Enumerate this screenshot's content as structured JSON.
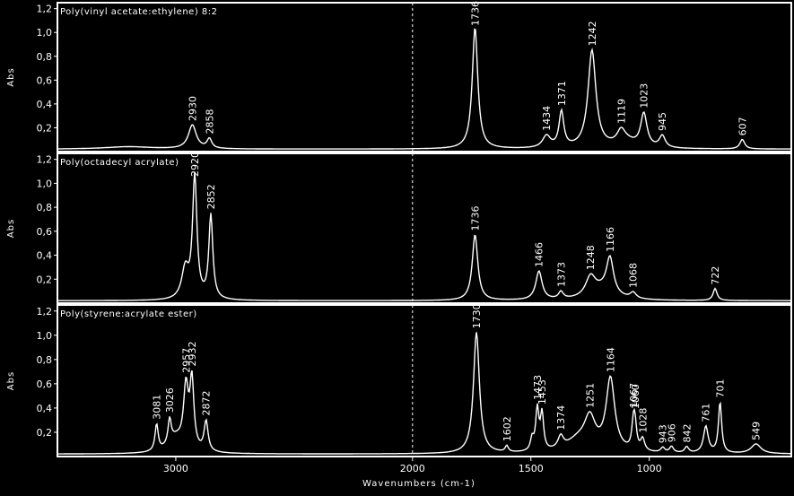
{
  "chart_data": {
    "type": "line",
    "x_axis": {
      "label": "Wavenumbers (cm-1)",
      "range": [
        3500,
        400
      ],
      "reversed": true,
      "ticks": [
        3000,
        2000,
        1500,
        1000
      ],
      "tick_labels": [
        "3000",
        "2000",
        "1500",
        "1000"
      ],
      "dashed_marker": 2000
    },
    "y_axis": {
      "label": "Abs",
      "range": [
        0,
        1.25
      ],
      "ticks": [
        0.2,
        0.4,
        0.6,
        0.8,
        1.0,
        1.2
      ],
      "tick_labels": [
        "0,2",
        "0,4",
        "0,6",
        "0,8",
        "1,0",
        "1,2"
      ]
    },
    "panels": [
      {
        "title": "Poly(vinyl acetate:ethylene) 8:2",
        "baseline": 0.02,
        "peaks": [
          {
            "x": 2930,
            "y": 0.2,
            "w": 20,
            "label": "2930"
          },
          {
            "x": 2858,
            "y": 0.08,
            "w": 12,
            "label": "2858"
          },
          {
            "x": 1736,
            "y": 1.02,
            "w": 14,
            "label": "1736"
          },
          {
            "x": 1434,
            "y": 0.1,
            "w": 20,
            "label": "1434"
          },
          {
            "x": 1371,
            "y": 0.3,
            "w": 12,
            "label": "1371"
          },
          {
            "x": 1242,
            "y": 0.82,
            "w": 20,
            "label": "1242"
          },
          {
            "x": 1119,
            "y": 0.1,
            "w": 20,
            "label": "1119"
          },
          {
            "x": 1023,
            "y": 0.28,
            "w": 16,
            "label": "1023"
          },
          {
            "x": 945,
            "y": 0.1,
            "w": 15,
            "label": "945"
          },
          {
            "x": 607,
            "y": 0.08,
            "w": 12,
            "label": "607"
          }
        ],
        "shoulders": [
          {
            "x": 1100,
            "y": 0.06,
            "w": 50
          },
          {
            "x": 3200,
            "y": 0.02,
            "w": 120
          }
        ]
      },
      {
        "title": "Poly(octadecyl acrylate)",
        "baseline": 0.02,
        "peaks": [
          {
            "x": 2920,
            "y": 1.02,
            "w": 11,
            "label": "2920"
          },
          {
            "x": 2852,
            "y": 0.7,
            "w": 10,
            "label": "2852"
          },
          {
            "x": 1736,
            "y": 0.55,
            "w": 14,
            "label": "1736"
          },
          {
            "x": 1466,
            "y": 0.24,
            "w": 16,
            "label": "1466"
          },
          {
            "x": 1373,
            "y": 0.06,
            "w": 12,
            "label": "1373"
          },
          {
            "x": 1248,
            "y": 0.16,
            "w": 25,
            "label": "1248"
          },
          {
            "x": 1166,
            "y": 0.3,
            "w": 18,
            "label": "1166"
          },
          {
            "x": 1068,
            "y": 0.05,
            "w": 15,
            "label": "1068"
          },
          {
            "x": 722,
            "y": 0.1,
            "w": 10,
            "label": "722"
          }
        ],
        "shoulders": [
          {
            "x": 2960,
            "y": 0.25,
            "w": 18
          },
          {
            "x": 1200,
            "y": 0.08,
            "w": 60
          }
        ]
      },
      {
        "title": "Poly(styrene:acrylate ester)",
        "baseline": 0.02,
        "peaks": [
          {
            "x": 3081,
            "y": 0.22,
            "w": 8,
            "label": "3081"
          },
          {
            "x": 3026,
            "y": 0.2,
            "w": 8,
            "label": "3026"
          },
          {
            "x": 2957,
            "y": 0.5,
            "w": 12,
            "label": "2957"
          },
          {
            "x": 2932,
            "y": 0.56,
            "w": 10,
            "label": "2932"
          },
          {
            "x": 2872,
            "y": 0.25,
            "w": 10,
            "label": "2872"
          },
          {
            "x": 1730,
            "y": 1.0,
            "w": 15,
            "label": "1730"
          },
          {
            "x": 1602,
            "y": 0.05,
            "w": 8,
            "label": "1602"
          },
          {
            "x": 1473,
            "y": 0.34,
            "w": 8,
            "label": "1473"
          },
          {
            "x": 1453,
            "y": 0.3,
            "w": 8,
            "label": "1453"
          },
          {
            "x": 1374,
            "y": 0.1,
            "w": 14,
            "label": "1374"
          },
          {
            "x": 1251,
            "y": 0.25,
            "w": 28,
            "label": "1251"
          },
          {
            "x": 1164,
            "y": 0.6,
            "w": 22,
            "label": "1164"
          },
          {
            "x": 1067,
            "y": 0.2,
            "w": 8,
            "label": "1067"
          },
          {
            "x": 1060,
            "y": 0.18,
            "w": 8,
            "label": "1060"
          },
          {
            "x": 1028,
            "y": 0.1,
            "w": 10,
            "label": "1028"
          },
          {
            "x": 943,
            "y": 0.04,
            "w": 10,
            "label": "943"
          },
          {
            "x": 906,
            "y": 0.05,
            "w": 10,
            "label": "906"
          },
          {
            "x": 842,
            "y": 0.05,
            "w": 10,
            "label": "842"
          },
          {
            "x": 761,
            "y": 0.22,
            "w": 12,
            "label": "761"
          },
          {
            "x": 701,
            "y": 0.42,
            "w": 8,
            "label": "701"
          },
          {
            "x": 549,
            "y": 0.08,
            "w": 25,
            "label": "549"
          }
        ],
        "shoulders": [
          {
            "x": 1300,
            "y": 0.1,
            "w": 60
          },
          {
            "x": 3000,
            "y": 0.12,
            "w": 40
          },
          {
            "x": 1495,
            "y": 0.1,
            "w": 8
          }
        ]
      }
    ]
  }
}
